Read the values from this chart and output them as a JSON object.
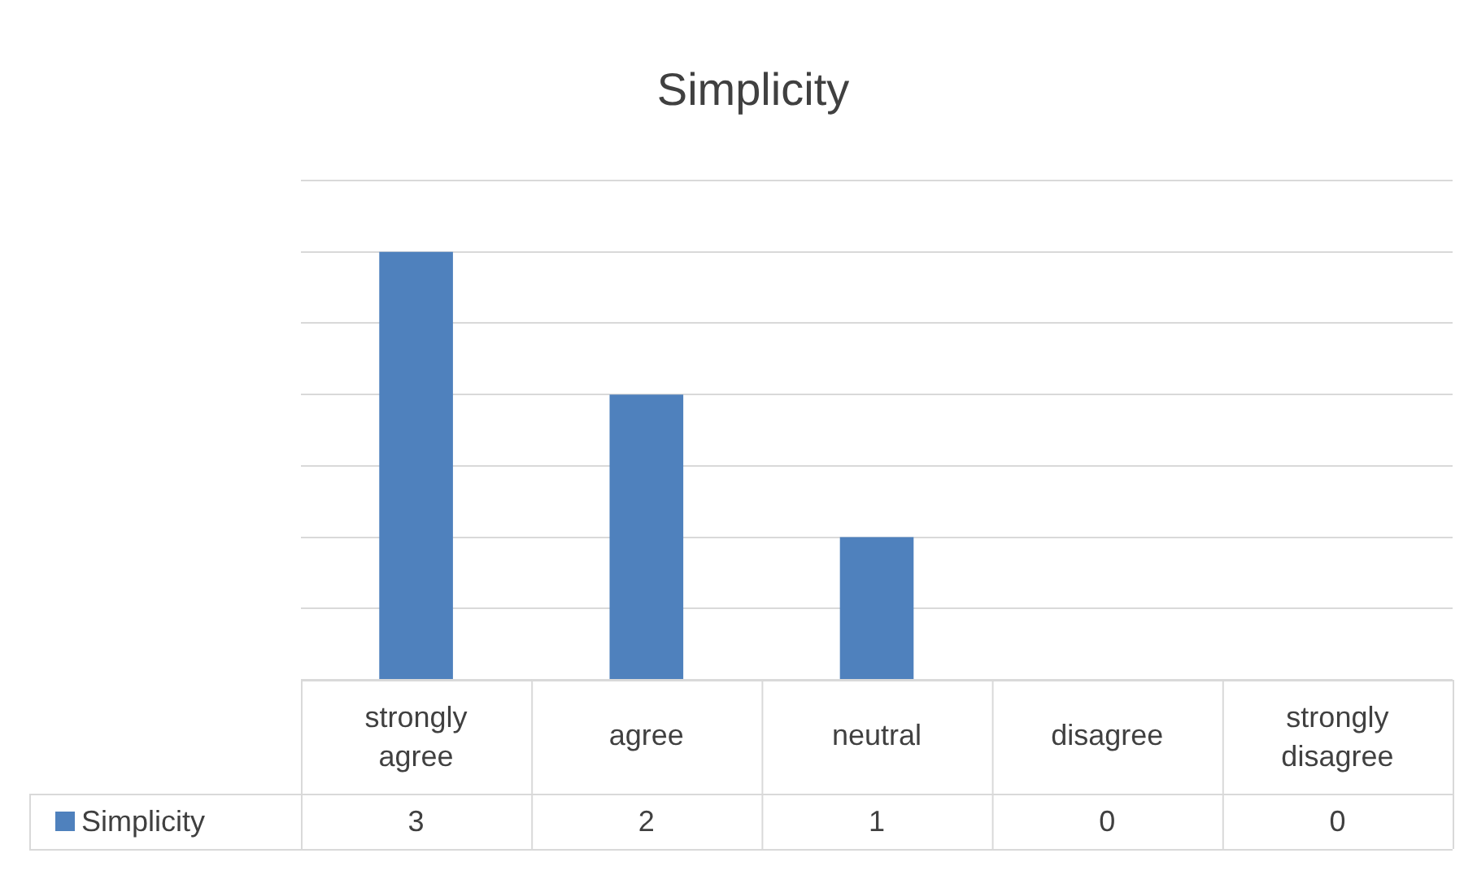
{
  "chart_data": {
    "type": "bar",
    "title": "Simplicity",
    "categories": [
      "strongly agree",
      "agree",
      "neutral",
      "disagree",
      "strongly disagree"
    ],
    "series": [
      {
        "name": "Simplicity",
        "color": "#4f81bd",
        "values": [
          3,
          2,
          1,
          0,
          0
        ]
      }
    ],
    "ylim": [
      0,
      3.5
    ],
    "yticks": [
      {
        "value": 0,
        "label": null
      },
      {
        "value": 0.5,
        "label": null
      },
      {
        "value": 1,
        "label": null
      },
      {
        "value": 1.5,
        "label": null
      },
      {
        "value": 2,
        "label": null
      },
      {
        "value": 2.5,
        "label": null
      },
      {
        "value": 3,
        "label": null
      },
      {
        "value": 3.5,
        "label": null
      }
    ],
    "grid": "y",
    "tick_labels": "x",
    "legend": "bottom",
    "data_labels": true
  }
}
